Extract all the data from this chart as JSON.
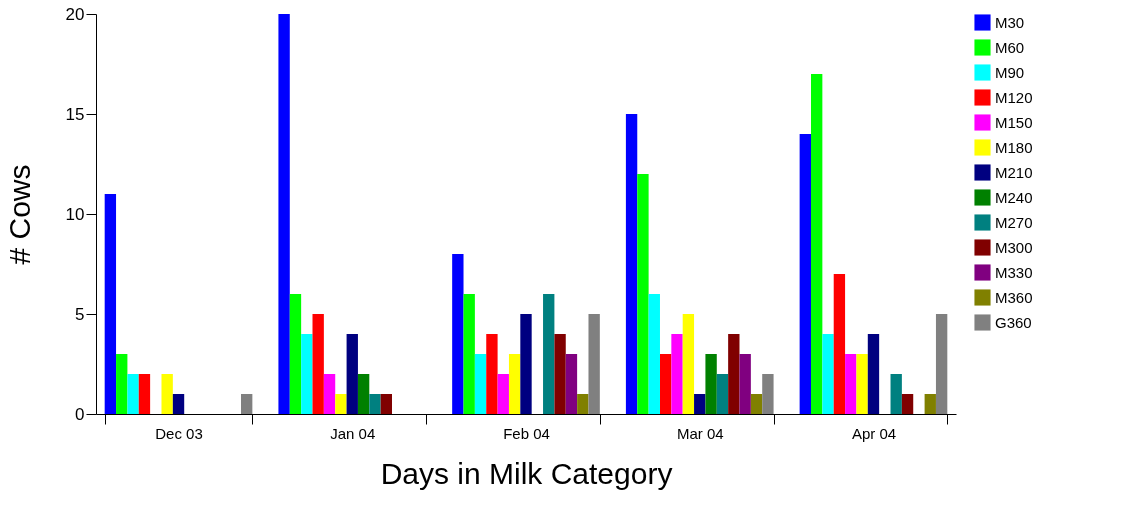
{
  "chart_data": {
    "type": "bar",
    "xlabel": "Days in Milk Category",
    "ylabel": "# Cows",
    "categories": [
      "Dec 03",
      "Jan 04",
      "Feb 04",
      "Mar 04",
      "Apr 04"
    ],
    "series": [
      {
        "name": "M30",
        "color": "#0000ff",
        "values": [
          11,
          20,
          8,
          15,
          14
        ]
      },
      {
        "name": "M60",
        "color": "#00ff00",
        "values": [
          3,
          6,
          6,
          12,
          17
        ]
      },
      {
        "name": "M90",
        "color": "#00ffff",
        "values": [
          2,
          4,
          3,
          6,
          4
        ]
      },
      {
        "name": "M120",
        "color": "#ff0000",
        "values": [
          2,
          5,
          4,
          3,
          7
        ]
      },
      {
        "name": "M150",
        "color": "#ff00ff",
        "values": [
          0,
          2,
          2,
          4,
          3
        ]
      },
      {
        "name": "M180",
        "color": "#ffff00",
        "values": [
          2,
          1,
          3,
          5,
          3
        ]
      },
      {
        "name": "M210",
        "color": "#000080",
        "values": [
          1,
          4,
          5,
          1,
          4
        ]
      },
      {
        "name": "M240",
        "color": "#008000",
        "values": [
          0,
          2,
          0,
          3,
          0
        ]
      },
      {
        "name": "M270",
        "color": "#008080",
        "values": [
          0,
          1,
          6,
          2,
          2
        ]
      },
      {
        "name": "M300",
        "color": "#800000",
        "values": [
          0,
          1,
          4,
          4,
          1
        ]
      },
      {
        "name": "M330",
        "color": "#800080",
        "values": [
          0,
          0,
          3,
          3,
          0
        ]
      },
      {
        "name": "M360",
        "color": "#808000",
        "values": [
          0,
          0,
          1,
          1,
          1
        ]
      },
      {
        "name": "G360",
        "color": "#808080",
        "values": [
          1,
          0,
          5,
          2,
          5
        ]
      }
    ],
    "ylim": [
      0,
      20
    ],
    "yticks": [
      0,
      5,
      10,
      15,
      20
    ],
    "grid": false,
    "legend": "right"
  }
}
